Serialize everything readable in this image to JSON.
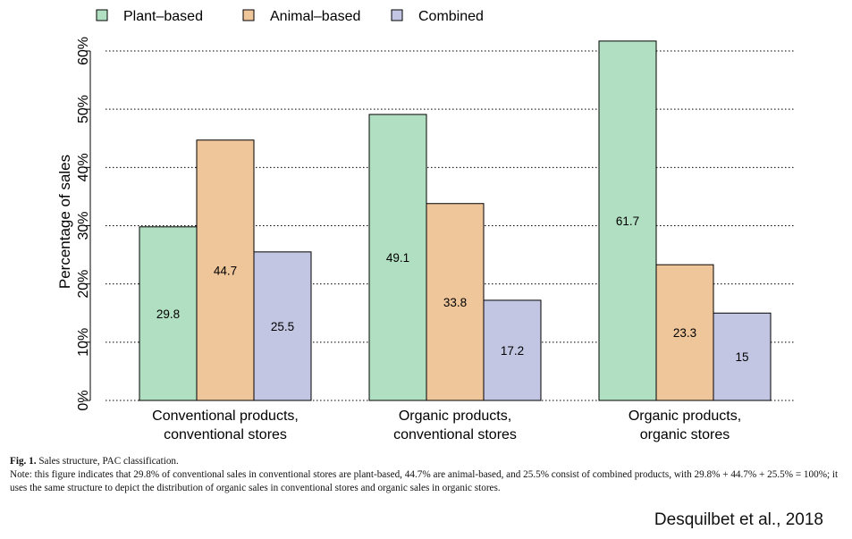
{
  "chart_data": {
    "type": "bar",
    "categories": [
      [
        "Conventional products,",
        "conventional stores"
      ],
      [
        "Organic products,",
        "conventional stores"
      ],
      [
        "Organic products,",
        "organic stores"
      ]
    ],
    "series": [
      {
        "name": "Plant–based",
        "values": [
          29.8,
          49.1,
          61.7
        ],
        "labels": [
          "29.8",
          "49.1",
          "61.7"
        ],
        "color": "#b1dfc1"
      },
      {
        "name": "Animal–based",
        "values": [
          44.7,
          33.8,
          23.3
        ],
        "labels": [
          "44.7",
          "33.8",
          "23.3"
        ],
        "color": "#efc59a"
      },
      {
        "name": "Combined",
        "values": [
          25.5,
          17.2,
          15
        ],
        "labels": [
          "25.5",
          "17.2",
          "15"
        ],
        "color": "#c3c6e3"
      }
    ],
    "ylabel": "Percentage of sales",
    "ylim": [
      0,
      60
    ],
    "yticks": [
      0,
      10,
      20,
      30,
      40,
      50,
      60
    ],
    "ytick_labels": [
      "0%",
      "10%",
      "20%",
      "30%",
      "40%",
      "50%",
      "60%"
    ],
    "grid": "horizontal dotted",
    "legend_position": "top"
  },
  "caption": {
    "fig_label": "Fig. 1.",
    "fig_title": " Sales structure, PAC classification.",
    "note": "Note: this figure indicates that 29.8% of conventional sales in conventional stores are plant-based, 44.7% are animal-based, and 25.5% consist of combined products, with 29.8% + 44.7% + 25.5% = 100%; it uses the same structure to depict the distribution of organic sales in conventional stores and organic sales in organic stores."
  },
  "citation": "Desquilbet et al., 2018"
}
